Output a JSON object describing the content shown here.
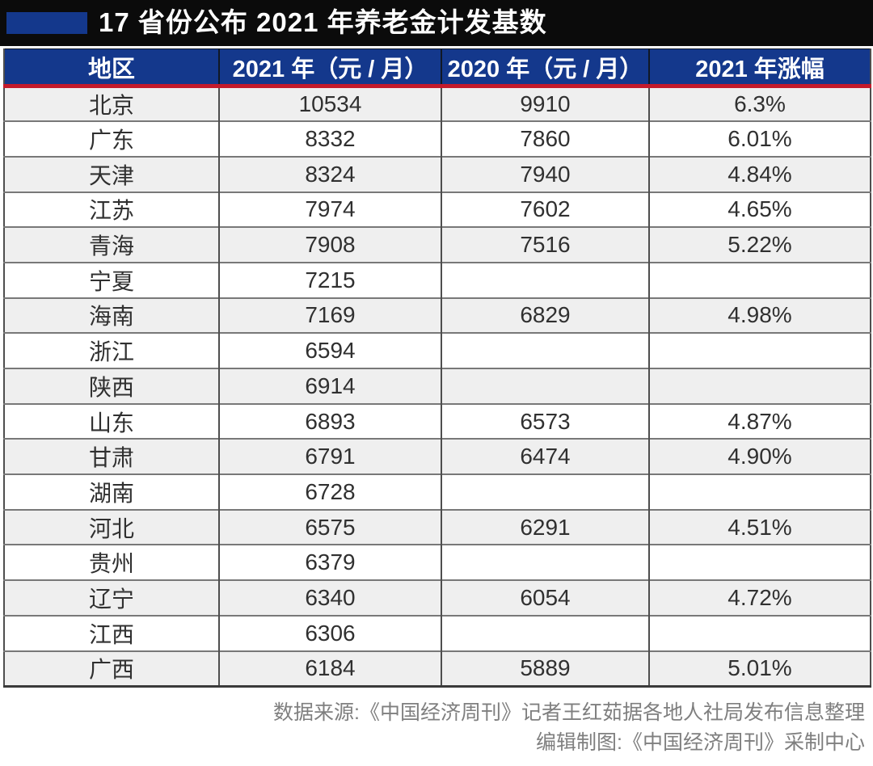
{
  "title": "17 省份公布 2021 年养老金计发基数",
  "colors": {
    "title_bar_black": "#0B0B0B",
    "accent_blue": "#14388C",
    "divider_red": "#C41A2B",
    "row_alt_gray": "#EFEFEF",
    "footer_gray": "#7F7F7F"
  },
  "chart_data": {
    "type": "table",
    "title": "17 省份公布 2021 年养老金计发基数",
    "columns": [
      "地区",
      "2021 年（元 / 月）",
      "2020 年（元 / 月）",
      "2021 年涨幅"
    ],
    "rows": [
      [
        "北京",
        "10534",
        "9910",
        "6.3%"
      ],
      [
        "广东",
        "8332",
        "7860",
        "6.01%"
      ],
      [
        "天津",
        "8324",
        "7940",
        "4.84%"
      ],
      [
        "江苏",
        "7974",
        "7602",
        "4.65%"
      ],
      [
        "青海",
        "7908",
        "7516",
        "5.22%"
      ],
      [
        "宁夏",
        "7215",
        "",
        ""
      ],
      [
        "海南",
        "7169",
        "6829",
        "4.98%"
      ],
      [
        "浙江",
        "6594",
        "",
        ""
      ],
      [
        "陕西",
        "6914",
        "",
        ""
      ],
      [
        "山东",
        "6893",
        "6573",
        "4.87%"
      ],
      [
        "甘肃",
        "6791",
        "6474",
        "4.90%"
      ],
      [
        "湖南",
        "6728",
        "",
        ""
      ],
      [
        "河北",
        "6575",
        "6291",
        "4.51%"
      ],
      [
        "贵州",
        "6379",
        "",
        ""
      ],
      [
        "辽宁",
        "6340",
        "6054",
        "4.72%"
      ],
      [
        "江西",
        "6306",
        "",
        ""
      ],
      [
        "广西",
        "6184",
        "5889",
        "5.01%"
      ]
    ],
    "row_striping": "odd rows shaded light gray, even rows white",
    "legend_position": "none",
    "grid": true
  },
  "footer": {
    "line1": "数据来源:《中国经济周刊》记者王红茹据各地人社局发布信息整理",
    "line2": "编辑制图:《中国经济周刊》采制中心"
  }
}
